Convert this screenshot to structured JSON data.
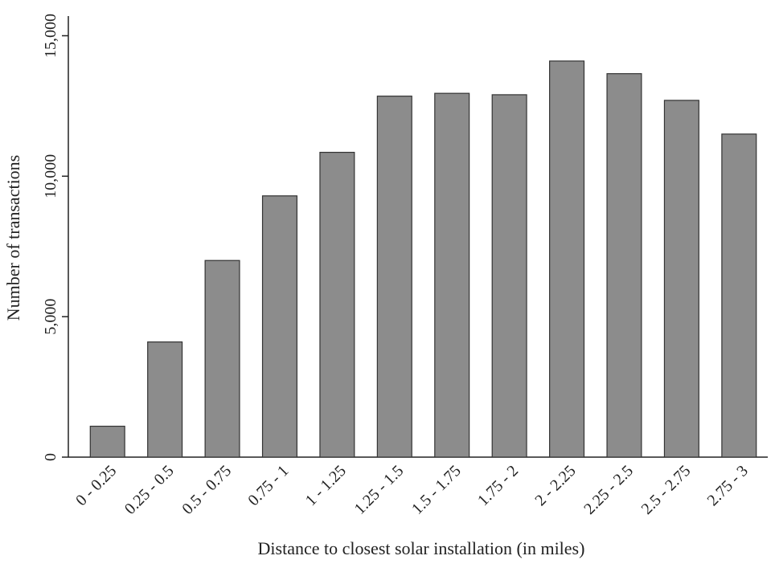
{
  "chart_data": {
    "type": "bar",
    "x_label": "Distance to closest solar installation (in miles)",
    "y_label": "Number of transactions",
    "categories": [
      "0 - 0.25",
      "0.25 - 0.5",
      "0.5 - 0.75",
      "0.75 - 1",
      "1 - 1.25",
      "1.25 - 1.5",
      "1.5 - 1.75",
      "1.75 - 2",
      "2 - 2.25",
      "2.25 - 2.5",
      "2.5 - 2.75",
      "2.75 - 3"
    ],
    "values": [
      1100,
      4100,
      7000,
      9300,
      10850,
      12850,
      12950,
      12900,
      14100,
      13650,
      12700,
      11500
    ],
    "color": "#8c8c8c",
    "ylim": [
      0,
      15700
    ],
    "yticks": [
      0,
      {
        "value": 5000,
        "label": "5,000"
      },
      {
        "value": 10000,
        "label": "10,000"
      },
      {
        "value": 15000,
        "label": "15,000"
      }
    ],
    "grid": false
  }
}
